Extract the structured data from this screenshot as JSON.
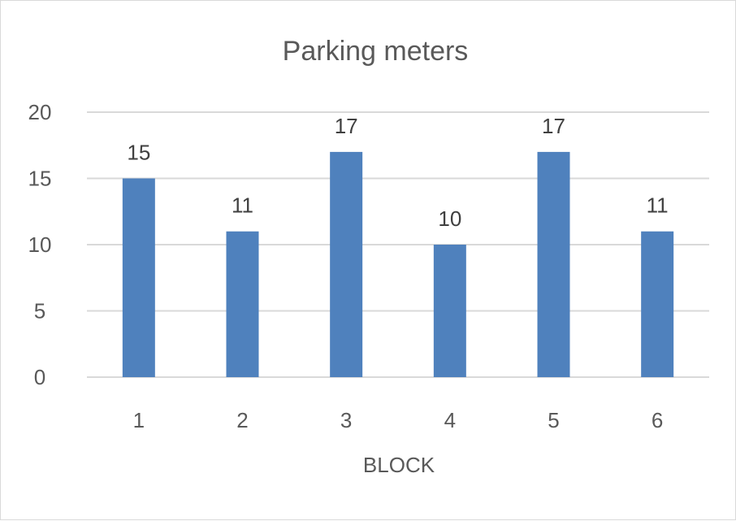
{
  "chart_data": {
    "type": "bar",
    "title": "Parking meters",
    "xlabel": "BLOCK",
    "ylabel": "",
    "categories": [
      "1",
      "2",
      "3",
      "4",
      "5",
      "6"
    ],
    "values": [
      15,
      11,
      17,
      10,
      17,
      11
    ],
    "ylim": [
      0,
      20
    ],
    "yticks": [
      0,
      5,
      10,
      15,
      20
    ],
    "grid": true,
    "legend": "none",
    "bar_color": "#4f81bd",
    "data_labels": true
  }
}
